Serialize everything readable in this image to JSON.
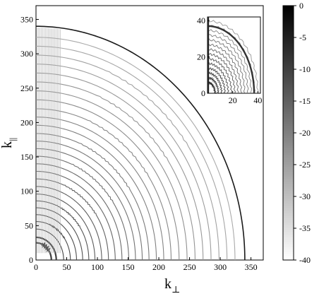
{
  "chart_data": [
    {
      "type": "contour",
      "title": "",
      "xlabel": "k",
      "xlabel_subscript": "⊥",
      "ylabel": "k",
      "ylabel_subscript": "||",
      "xlim": [
        0,
        370
      ],
      "ylim": [
        0,
        370
      ],
      "xticks": [
        "0",
        "50",
        "100",
        "150",
        "200",
        "250",
        "300",
        "350"
      ],
      "yticks": [
        "0",
        "50",
        "100",
        "150",
        "200",
        "250",
        "300",
        "350"
      ],
      "grid": false,
      "domain_boundary_radius": 340,
      "contour_radii": [
        25,
        33,
        45,
        56,
        66,
        76,
        86,
        96,
        107,
        118,
        129,
        140,
        151,
        162,
        173,
        184,
        196,
        208,
        220,
        233,
        246,
        259,
        272,
        285,
        298,
        311,
        324
      ]
    },
    {
      "type": "contour",
      "inset": true,
      "inset_position": "top-right",
      "xlim": [
        0,
        42
      ],
      "ylim": [
        0,
        42
      ],
      "xticks": [
        "20",
        "40"
      ],
      "yticks": [
        "0",
        "20",
        "40"
      ],
      "domain_boundary_radius": 37
    }
  ],
  "colorbar": {
    "range": [
      -40,
      0
    ],
    "ticks": [
      "0",
      "-5",
      "-10",
      "-15",
      "-20",
      "-25",
      "-30",
      "-35",
      "-40"
    ],
    "colormap": [
      "#000000",
      "#ffffff"
    ]
  }
}
